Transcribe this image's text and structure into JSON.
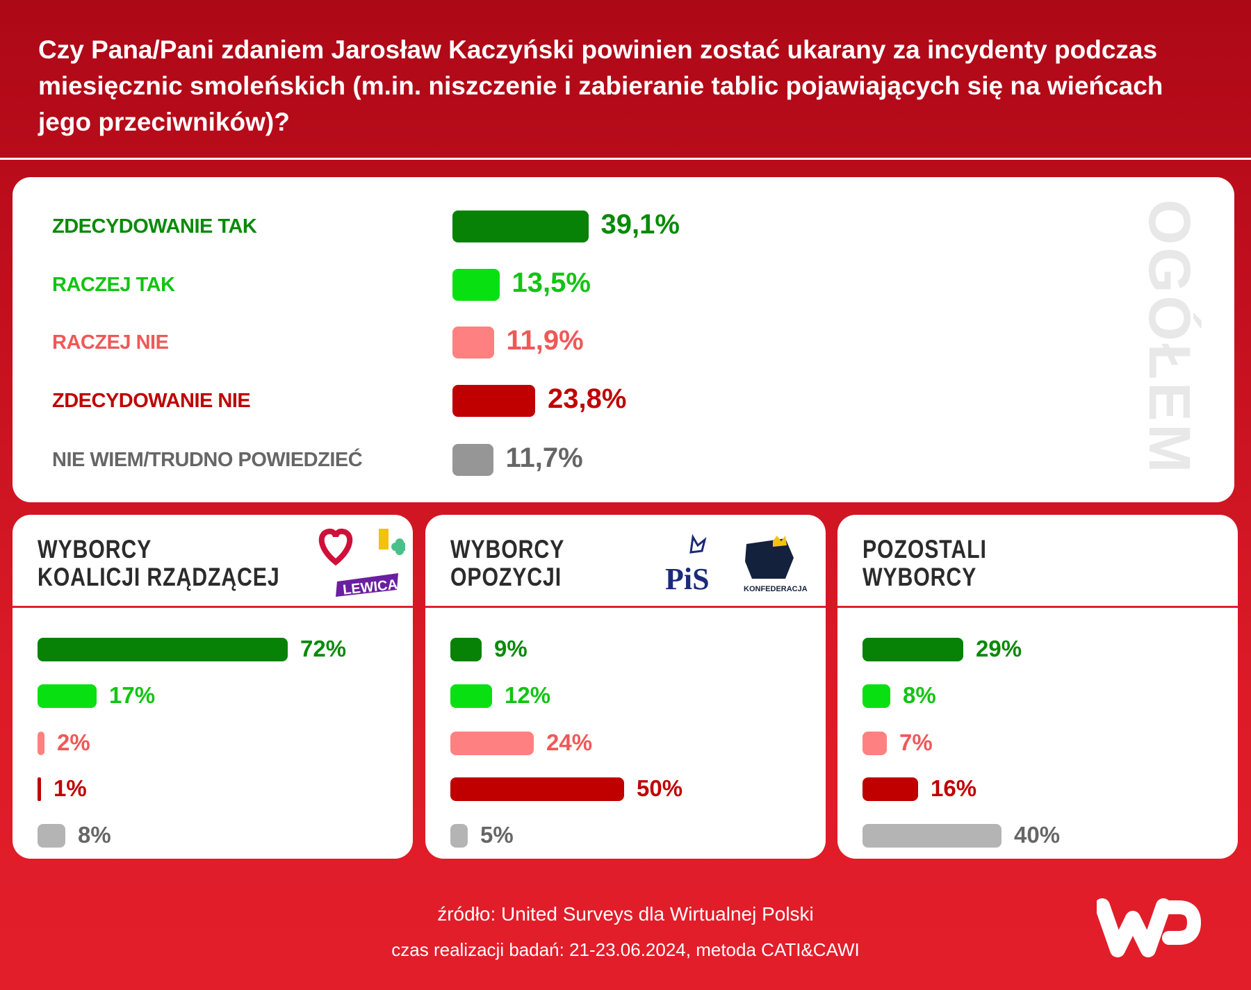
{
  "header": {
    "title": "Czy Pana/Pani zdaniem Jarosław Kaczyński powinien zostać ukarany za incydenty podczas miesięcznic smoleńskich (m.in. niszczenie i zabieranie tablic pojawiających się na wieńcach jego przeciwników)?"
  },
  "chart_data": [
    {
      "type": "bar",
      "orientation": "horizontal",
      "title": "OGÓŁEM",
      "categories": [
        "ZDECYDOWANIE TAK",
        "RACZEJ TAK",
        "RACZEJ NIE",
        "ZDECYDOWANIE NIE",
        "NIE WIEM/TRUDNO POWIEDZIEĆ"
      ],
      "values": [
        39.1,
        13.5,
        11.9,
        23.8,
        11.7
      ],
      "value_labels": [
        "39,1%",
        "13,5%",
        "11,9%",
        "23,8%",
        "11,7%"
      ],
      "colors": [
        "#078207",
        "#08e011",
        "#ff8080",
        "#c00000",
        "#969696"
      ],
      "label_colors": [
        "#088a08",
        "#12c412",
        "#f05858",
        "#c00000",
        "#666666"
      ]
    },
    {
      "type": "bar",
      "orientation": "horizontal",
      "title": [
        "WYBORCY",
        "KOALICJI RZĄDZĄCEJ"
      ],
      "values": [
        72,
        17,
        2,
        1,
        8
      ],
      "value_labels": [
        "72%",
        "17%",
        "2%",
        "1%",
        "8%"
      ]
    },
    {
      "type": "bar",
      "orientation": "horizontal",
      "title": [
        "WYBORCY",
        "OPOZYCJI"
      ],
      "values": [
        9,
        12,
        24,
        50,
        5
      ],
      "value_labels": [
        "9%",
        "12%",
        "24%",
        "50%",
        "5%"
      ]
    },
    {
      "type": "bar",
      "orientation": "horizontal",
      "title": [
        "POZOSTALI",
        "WYBORCY"
      ],
      "values": [
        29,
        8,
        7,
        16,
        40
      ],
      "value_labels": [
        "29%",
        "8%",
        "7%",
        "16%",
        "40%"
      ]
    }
  ],
  "sub_gray": "#b4b4b4",
  "logos": {
    "lewica": "LEWICA",
    "pis": "PiS",
    "konfederacja": "KONFEDERACJA",
    "wp": "WP"
  },
  "footer": {
    "source": "źródło: United Surveys dla Wirtualnej Polski",
    "method": "czas realizacji badań: 21-23.06.2024, metoda CATI&CAWI"
  }
}
